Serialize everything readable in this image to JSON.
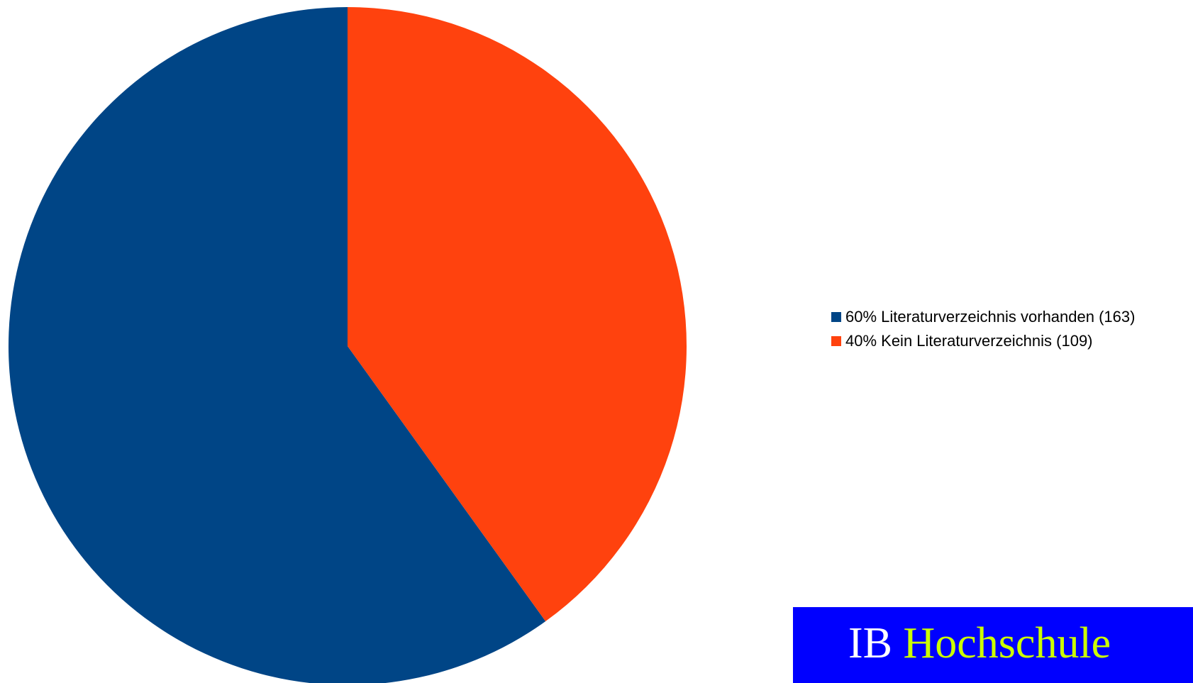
{
  "chart_data": {
    "type": "pie",
    "slices": [
      {
        "label": "60% Literaturverzeichnis vorhanden (163)",
        "value": 163,
        "color": "#004586"
      },
      {
        "label": "40% Kein Literaturverzeichnis (109)",
        "value": 109,
        "color": "#ff420e"
      }
    ],
    "legend_position": "right"
  },
  "brand": {
    "prefix": "IB",
    "name": "Hochschule",
    "background_color": "#0000ff",
    "prefix_color": "#ffffff",
    "name_color": "#ccff00"
  }
}
